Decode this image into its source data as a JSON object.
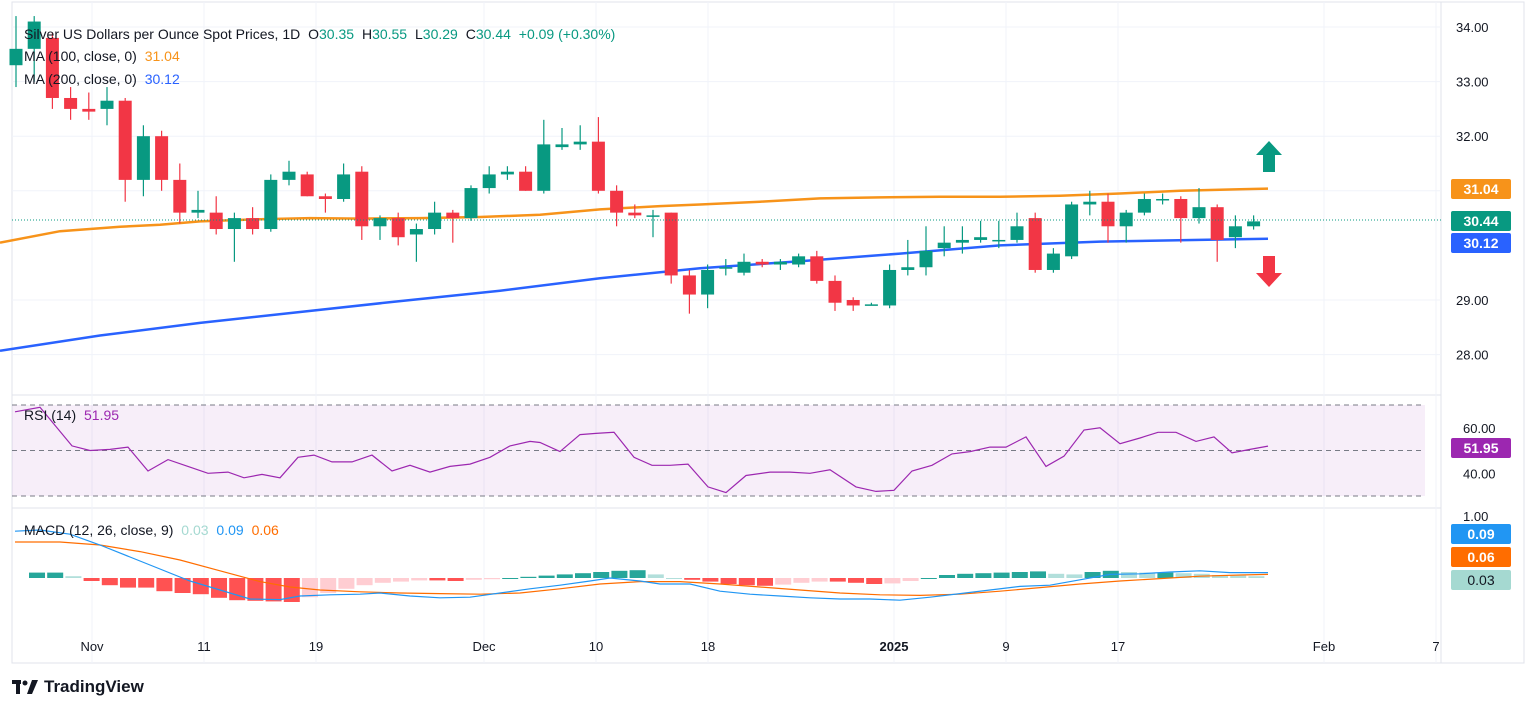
{
  "legend": {
    "symbol": "Silver US Dollars per Ounce Spot Prices, 1D",
    "o_label": "O",
    "o": "30.35",
    "h_label": "H",
    "h": "30.55",
    "l_label": "L",
    "l": "30.29",
    "c_label": "C",
    "c": "30.44",
    "change": "+0.09 (+0.30%)",
    "ma100_label": "MA (100, close, 0)",
    "ma100_value": "31.04",
    "ma200_label": "MA (200, close, 0)",
    "ma200_value": "30.12",
    "rsi_label": "RSI (14)",
    "rsi_value": "51.95",
    "macd_label": "MACD (12, 26, close, 9)",
    "macd_hist": "0.03",
    "macd_line": "0.09",
    "macd_signal": "0.06"
  },
  "badges": {
    "ma100": "31.04",
    "close": "30.44",
    "ma200": "30.12",
    "rsi": "51.95",
    "macd_line": "0.09",
    "macd_signal": "0.06",
    "macd_hist": "0.03"
  },
  "colors": {
    "up": "#089981",
    "down": "#f23645",
    "ma100": "#f7931a",
    "ma200": "#2962ff",
    "rsi": "#9c27b0",
    "macd_line": "#2196f3",
    "macd_signal": "#ff6d00",
    "up_arrow": "#089981",
    "down_arrow": "#f23645"
  },
  "brand": "TradingView",
  "chart_data": {
    "type": "candlestick",
    "title": "Silver US Dollars per Ounce Spot Prices, 1D",
    "price_ticks": [
      "34.00",
      "33.00",
      "32.00",
      "31.00",
      "29.00",
      "28.00"
    ],
    "price_tick_values": [
      34,
      33,
      32,
      31,
      29,
      28
    ],
    "ylim": [
      27.3,
      34.25
    ],
    "x_ticks": [
      "Nov",
      "11",
      "19",
      "Dec",
      "10",
      "18",
      "2025",
      "9",
      "17",
      "Feb",
      "7"
    ],
    "candles": [
      {
        "o": 33.3,
        "h": 34.2,
        "l": 32.9,
        "c": 33.6
      },
      {
        "o": 33.6,
        "h": 34.2,
        "l": 33.0,
        "c": 34.1
      },
      {
        "o": 33.8,
        "h": 33.9,
        "l": 32.5,
        "c": 32.7
      },
      {
        "o": 32.7,
        "h": 32.9,
        "l": 32.3,
        "c": 32.5
      },
      {
        "o": 32.5,
        "h": 32.8,
        "l": 32.3,
        "c": 32.45
      },
      {
        "o": 32.5,
        "h": 32.9,
        "l": 32.2,
        "c": 32.65
      },
      {
        "o": 32.65,
        "h": 32.7,
        "l": 30.8,
        "c": 31.2
      },
      {
        "o": 31.2,
        "h": 32.2,
        "l": 30.9,
        "c": 32.0
      },
      {
        "o": 32.0,
        "h": 32.1,
        "l": 31.0,
        "c": 31.2
      },
      {
        "o": 31.2,
        "h": 31.5,
        "l": 30.4,
        "c": 30.6
      },
      {
        "o": 30.6,
        "h": 31.0,
        "l": 30.5,
        "c": 30.65
      },
      {
        "o": 30.6,
        "h": 30.9,
        "l": 30.2,
        "c": 30.3
      },
      {
        "o": 30.3,
        "h": 30.6,
        "l": 29.7,
        "c": 30.5
      },
      {
        "o": 30.5,
        "h": 30.7,
        "l": 30.2,
        "c": 30.3
      },
      {
        "o": 30.3,
        "h": 31.3,
        "l": 30.25,
        "c": 31.2
      },
      {
        "o": 31.2,
        "h": 31.55,
        "l": 31.1,
        "c": 31.35
      },
      {
        "o": 31.3,
        "h": 31.35,
        "l": 30.9,
        "c": 30.9
      },
      {
        "o": 30.9,
        "h": 30.95,
        "l": 30.6,
        "c": 30.85
      },
      {
        "o": 30.85,
        "h": 31.5,
        "l": 30.8,
        "c": 31.3
      },
      {
        "o": 31.35,
        "h": 31.45,
        "l": 30.1,
        "c": 30.35
      },
      {
        "o": 30.35,
        "h": 30.55,
        "l": 30.1,
        "c": 30.5
      },
      {
        "o": 30.5,
        "h": 30.6,
        "l": 30.0,
        "c": 30.15
      },
      {
        "o": 30.2,
        "h": 30.4,
        "l": 29.7,
        "c": 30.3
      },
      {
        "o": 30.3,
        "h": 30.8,
        "l": 30.2,
        "c": 30.6
      },
      {
        "o": 30.6,
        "h": 30.65,
        "l": 30.05,
        "c": 30.5
      },
      {
        "o": 30.5,
        "h": 31.1,
        "l": 30.45,
        "c": 31.05
      },
      {
        "o": 31.05,
        "h": 31.45,
        "l": 30.95,
        "c": 31.3
      },
      {
        "o": 31.3,
        "h": 31.45,
        "l": 31.2,
        "c": 31.35
      },
      {
        "o": 31.35,
        "h": 31.45,
        "l": 31.0,
        "c": 31.0
      },
      {
        "o": 31.0,
        "h": 32.3,
        "l": 30.95,
        "c": 31.85
      },
      {
        "o": 31.8,
        "h": 32.15,
        "l": 31.75,
        "c": 31.85
      },
      {
        "o": 31.85,
        "h": 32.2,
        "l": 31.75,
        "c": 31.9
      },
      {
        "o": 31.9,
        "h": 32.35,
        "l": 30.95,
        "c": 31.0
      },
      {
        "o": 31.0,
        "h": 31.1,
        "l": 30.35,
        "c": 30.6
      },
      {
        "o": 30.6,
        "h": 30.75,
        "l": 30.5,
        "c": 30.55
      },
      {
        "o": 30.55,
        "h": 30.65,
        "l": 30.15,
        "c": 30.55
      },
      {
        "o": 30.6,
        "h": 30.6,
        "l": 29.3,
        "c": 29.45
      },
      {
        "o": 29.45,
        "h": 29.55,
        "l": 28.75,
        "c": 29.1
      },
      {
        "o": 29.1,
        "h": 29.65,
        "l": 28.85,
        "c": 29.55
      },
      {
        "o": 29.6,
        "h": 29.75,
        "l": 29.45,
        "c": 29.6
      },
      {
        "o": 29.5,
        "h": 29.85,
        "l": 29.45,
        "c": 29.7
      },
      {
        "o": 29.7,
        "h": 29.75,
        "l": 29.6,
        "c": 29.65
      },
      {
        "o": 29.65,
        "h": 29.75,
        "l": 29.55,
        "c": 29.7
      },
      {
        "o": 29.65,
        "h": 29.85,
        "l": 29.6,
        "c": 29.8
      },
      {
        "o": 29.8,
        "h": 29.9,
        "l": 29.3,
        "c": 29.35
      },
      {
        "o": 29.35,
        "h": 29.45,
        "l": 28.8,
        "c": 28.95
      },
      {
        "o": 29.0,
        "h": 29.05,
        "l": 28.8,
        "c": 28.9
      },
      {
        "o": 28.9,
        "h": 28.95,
        "l": 28.9,
        "c": 28.92
      },
      {
        "o": 28.9,
        "h": 29.65,
        "l": 28.85,
        "c": 29.55
      },
      {
        "o": 29.55,
        "h": 30.1,
        "l": 29.45,
        "c": 29.6
      },
      {
        "o": 29.6,
        "h": 30.35,
        "l": 29.45,
        "c": 29.9
      },
      {
        "o": 29.95,
        "h": 30.35,
        "l": 29.8,
        "c": 30.05
      },
      {
        "o": 30.05,
        "h": 30.35,
        "l": 29.85,
        "c": 30.1
      },
      {
        "o": 30.1,
        "h": 30.45,
        "l": 30.05,
        "c": 30.15
      },
      {
        "o": 30.1,
        "h": 30.45,
        "l": 29.95,
        "c": 30.1
      },
      {
        "o": 30.1,
        "h": 30.6,
        "l": 30.05,
        "c": 30.35
      },
      {
        "o": 30.5,
        "h": 30.6,
        "l": 29.5,
        "c": 29.55
      },
      {
        "o": 29.55,
        "h": 29.95,
        "l": 29.5,
        "c": 29.85
      },
      {
        "o": 29.8,
        "h": 30.8,
        "l": 29.75,
        "c": 30.75
      },
      {
        "o": 30.75,
        "h": 31.0,
        "l": 30.55,
        "c": 30.8
      },
      {
        "o": 30.8,
        "h": 30.95,
        "l": 30.05,
        "c": 30.35
      },
      {
        "o": 30.35,
        "h": 30.65,
        "l": 30.05,
        "c": 30.6
      },
      {
        "o": 30.6,
        "h": 30.95,
        "l": 30.55,
        "c": 30.85
      },
      {
        "o": 30.85,
        "h": 30.95,
        "l": 30.75,
        "c": 30.85
      },
      {
        "o": 30.85,
        "h": 30.9,
        "l": 30.05,
        "c": 30.5
      },
      {
        "o": 30.5,
        "h": 31.05,
        "l": 30.4,
        "c": 30.7
      },
      {
        "o": 30.7,
        "h": 30.75,
        "l": 29.7,
        "c": 30.1
      },
      {
        "o": 30.15,
        "h": 30.55,
        "l": 29.95,
        "c": 30.35
      },
      {
        "o": 30.35,
        "h": 30.55,
        "l": 30.29,
        "c": 30.44
      }
    ],
    "ma100": [
      [
        0,
        30.05
      ],
      [
        60,
        30.26
      ],
      [
        120,
        30.34
      ],
      [
        160,
        30.38
      ],
      [
        200,
        30.44
      ],
      [
        260,
        30.48
      ],
      [
        310,
        30.5
      ],
      [
        360,
        30.49
      ],
      [
        420,
        30.5
      ],
      [
        480,
        30.52
      ],
      [
        540,
        30.56
      ],
      [
        600,
        30.66
      ],
      [
        660,
        30.72
      ],
      [
        700,
        30.75
      ],
      [
        760,
        30.8
      ],
      [
        820,
        30.86
      ],
      [
        880,
        30.88
      ],
      [
        940,
        30.89
      ],
      [
        1000,
        30.89
      ],
      [
        1060,
        30.91
      ],
      [
        1120,
        30.95
      ],
      [
        1180,
        31.0
      ],
      [
        1240,
        31.03
      ],
      [
        1268,
        31.04
      ]
    ],
    "ma200": [
      [
        0,
        28.07
      ],
      [
        100,
        28.35
      ],
      [
        200,
        28.58
      ],
      [
        300,
        28.78
      ],
      [
        400,
        28.98
      ],
      [
        500,
        29.17
      ],
      [
        600,
        29.4
      ],
      [
        700,
        29.58
      ],
      [
        800,
        29.71
      ],
      [
        900,
        29.85
      ],
      [
        1000,
        30.0
      ],
      [
        1100,
        30.07
      ],
      [
        1200,
        30.1
      ],
      [
        1268,
        30.12
      ]
    ],
    "rsi": {
      "levels": [
        70,
        50,
        30
      ],
      "y_ticks": [
        "60.00",
        "40.00"
      ],
      "ylim": [
        27,
        73
      ],
      "values": [
        [
          15,
          67
        ],
        [
          40,
          69
        ],
        [
          72,
          52
        ],
        [
          90,
          50
        ],
        [
          110,
          50.5
        ],
        [
          128,
          51.5
        ],
        [
          148,
          41
        ],
        [
          168,
          46
        ],
        [
          188,
          43
        ],
        [
          208,
          40
        ],
        [
          228,
          40.5
        ],
        [
          244,
          38
        ],
        [
          262,
          39.5
        ],
        [
          280,
          38
        ],
        [
          298,
          47
        ],
        [
          314,
          48
        ],
        [
          332,
          45
        ],
        [
          352,
          45
        ],
        [
          372,
          48
        ],
        [
          392,
          41
        ],
        [
          410,
          43.5
        ],
        [
          430,
          40.5
        ],
        [
          450,
          43
        ],
        [
          470,
          44
        ],
        [
          490,
          47
        ],
        [
          510,
          52
        ],
        [
          530,
          54
        ],
        [
          540,
          53.5
        ],
        [
          560,
          49.5
        ],
        [
          580,
          57
        ],
        [
          596,
          57.5
        ],
        [
          614,
          58
        ],
        [
          634,
          47
        ],
        [
          652,
          43.5
        ],
        [
          670,
          43.5
        ],
        [
          688,
          44
        ],
        [
          708,
          34
        ],
        [
          726,
          31.5
        ],
        [
          746,
          39
        ],
        [
          770,
          40.5
        ],
        [
          790,
          40.5
        ],
        [
          810,
          40
        ],
        [
          830,
          41.5
        ],
        [
          856,
          34
        ],
        [
          876,
          32
        ],
        [
          894,
          32.5
        ],
        [
          912,
          41
        ],
        [
          932,
          43.5
        ],
        [
          952,
          48.5
        ],
        [
          970,
          49.5
        ],
        [
          990,
          51.5
        ],
        [
          1006,
          51.5
        ],
        [
          1026,
          56
        ],
        [
          1046,
          43
        ],
        [
          1064,
          47.5
        ],
        [
          1084,
          59
        ],
        [
          1100,
          60
        ],
        [
          1120,
          53
        ],
        [
          1140,
          55.5
        ],
        [
          1158,
          58
        ],
        [
          1176,
          58
        ],
        [
          1196,
          54
        ],
        [
          1214,
          56
        ],
        [
          1232,
          49
        ],
        [
          1250,
          50.5
        ],
        [
          1268,
          51.95
        ]
      ]
    },
    "macd": {
      "y_ticks": [
        "1.00"
      ],
      "ylim": [
        -0.85,
        1.1
      ],
      "hist_x_start": 38,
      "hist_x_step": 18.2,
      "hist": [
        0.09,
        0.09,
        0.03,
        -0.05,
        -0.12,
        -0.16,
        -0.16,
        -0.22,
        -0.25,
        -0.27,
        -0.33,
        -0.37,
        -0.38,
        -0.39,
        -0.4,
        -0.32,
        -0.25,
        -0.18,
        -0.12,
        -0.08,
        -0.06,
        -0.04,
        -0.04,
        -0.05,
        -0.03,
        -0.02,
        0.0,
        0.02,
        0.04,
        0.06,
        0.08,
        0.1,
        0.12,
        0.13,
        0.06,
        0.0,
        -0.03,
        -0.06,
        -0.1,
        -0.12,
        -0.13,
        -0.11,
        -0.08,
        -0.06,
        -0.06,
        -0.08,
        -0.1,
        -0.09,
        -0.05,
        0.0,
        0.05,
        0.07,
        0.08,
        0.09,
        0.1,
        0.11,
        0.07,
        0.06,
        0.1,
        0.12,
        0.1,
        0.09,
        0.09,
        0.08,
        0.07,
        0.05,
        0.04,
        0.03
      ],
      "macd_line": [
        [
          15,
          0.78
        ],
        [
          40,
          0.8
        ],
        [
          70,
          0.73
        ],
        [
          100,
          0.55
        ],
        [
          130,
          0.35
        ],
        [
          160,
          0.15
        ],
        [
          190,
          -0.05
        ],
        [
          220,
          -0.2
        ],
        [
          250,
          -0.35
        ],
        [
          280,
          -0.36
        ],
        [
          300,
          -0.3
        ],
        [
          330,
          -0.28
        ],
        [
          360,
          -0.27
        ],
        [
          380,
          -0.25
        ],
        [
          410,
          -0.3
        ],
        [
          440,
          -0.33
        ],
        [
          470,
          -0.32
        ],
        [
          500,
          -0.25
        ],
        [
          530,
          -0.18
        ],
        [
          560,
          -0.12
        ],
        [
          590,
          -0.05
        ],
        [
          610,
          0.0
        ],
        [
          640,
          -0.05
        ],
        [
          660,
          -0.1
        ],
        [
          690,
          -0.1
        ],
        [
          720,
          -0.22
        ],
        [
          750,
          -0.27
        ],
        [
          780,
          -0.3
        ],
        [
          810,
          -0.33
        ],
        [
          840,
          -0.35
        ],
        [
          870,
          -0.35
        ],
        [
          900,
          -0.37
        ],
        [
          930,
          -0.32
        ],
        [
          960,
          -0.26
        ],
        [
          990,
          -0.2
        ],
        [
          1020,
          -0.14
        ],
        [
          1050,
          -0.12
        ],
        [
          1080,
          -0.03
        ],
        [
          1110,
          0.06
        ],
        [
          1140,
          0.07
        ],
        [
          1170,
          0.1
        ],
        [
          1200,
          0.12
        ],
        [
          1230,
          0.09
        ],
        [
          1268,
          0.09
        ]
      ],
      "signal_line": [
        [
          15,
          0.6
        ],
        [
          60,
          0.6
        ],
        [
          100,
          0.55
        ],
        [
          140,
          0.44
        ],
        [
          180,
          0.3
        ],
        [
          220,
          0.12
        ],
        [
          260,
          -0.06
        ],
        [
          290,
          -0.15
        ],
        [
          320,
          -0.2
        ],
        [
          360,
          -0.23
        ],
        [
          400,
          -0.25
        ],
        [
          440,
          -0.26
        ],
        [
          480,
          -0.27
        ],
        [
          520,
          -0.25
        ],
        [
          560,
          -0.18
        ],
        [
          600,
          -0.1
        ],
        [
          640,
          -0.06
        ],
        [
          680,
          -0.06
        ],
        [
          720,
          -0.1
        ],
        [
          760,
          -0.15
        ],
        [
          800,
          -0.2
        ],
        [
          840,
          -0.25
        ],
        [
          880,
          -0.28
        ],
        [
          920,
          -0.29
        ],
        [
          960,
          -0.27
        ],
        [
          1000,
          -0.22
        ],
        [
          1040,
          -0.16
        ],
        [
          1080,
          -0.1
        ],
        [
          1120,
          -0.05
        ],
        [
          1160,
          -0.01
        ],
        [
          1200,
          0.03
        ],
        [
          1240,
          0.05
        ],
        [
          1268,
          0.06
        ]
      ]
    }
  }
}
